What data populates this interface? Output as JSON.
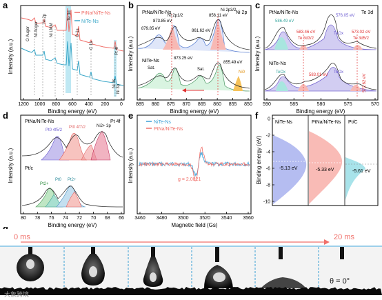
{
  "panels": {
    "a": {
      "letter": "a",
      "xlabel": "Binding energy (eV)",
      "ylabel": "Intensity (a.u.)",
      "xticks": [
        "1200",
        "1000",
        "800",
        "600",
        "400",
        "200",
        "0"
      ],
      "legend": [
        "Pt$_{Na}$/NiTe-Ns",
        "NiTe-Ns"
      ],
      "legend_text": [
        "PtNa/NiTe-Ns",
        "NiTe-Ns"
      ],
      "peaks": [
        "O Auger",
        "Ni Auger",
        "Ni 2p",
        "Ni LMM",
        "Te 3d",
        "O 1s",
        "C 1s",
        "Pt 4f",
        "Ni 3s",
        "Ni 3p"
      ]
    },
    "b": {
      "letter": "b",
      "xlabel": "Binding energy (eV)",
      "ylabel": "Intensity (a.u.)",
      "xticks": [
        "885",
        "880",
        "875",
        "870",
        "865",
        "860",
        "855",
        "850"
      ],
      "title": "Ni 2p",
      "sample_top": "PtNa/NiTe-Ns",
      "sample_bottom": "NiTe-Ns",
      "labels": [
        "879.85 eV",
        "873.85 eV",
        "Ni 2p1/2",
        "856.11 eV",
        "Ni 2p3/2",
        "861.62 eV",
        "873.25 eV",
        "855.49 eV",
        "Sat.",
        "Sat.",
        "Ni0"
      ]
    },
    "c": {
      "letter": "c",
      "xlabel": "Binding energy (eV)",
      "ylabel": "Intensity (a.u.)",
      "xticks": [
        "590",
        "585",
        "580",
        "575",
        "570"
      ],
      "title": "Te 3d",
      "sample_top": "PtNa/NiTe-Ns",
      "sample_bottom": "NiTe-Ns",
      "labels": [
        "586.49 eV",
        "576.05 eV",
        "583.46 eV",
        "Te 3d3/2",
        "573.02 eV",
        "Te 3d5/2",
        "TeOx",
        "TeOx",
        "583.01 eV",
        "572.62 eV"
      ]
    },
    "d": {
      "letter": "d",
      "xlabel": "Binding energy (eV)",
      "ylabel": "Intensity (a.u.)",
      "xticks": [
        "80",
        "78",
        "76",
        "74",
        "72",
        "70",
        "68",
        "66"
      ],
      "title": "Pt 4f",
      "sample_top": "PtNa/NiTe-Ns",
      "sample_bottom": "Pt/c",
      "labels": [
        "Pt0 4f5/2",
        "Pt0 4f7/2",
        "Ni2+ 3p",
        "Pt2+",
        "Pt2+",
        "Pt0"
      ]
    },
    "e": {
      "letter": "e",
      "xlabel": "Magnetic field (Gs)",
      "ylabel": "Intensity (a.u.)",
      "xticks": [
        "3460",
        "3480",
        "3500",
        "3520",
        "3540",
        "3560"
      ],
      "legend": [
        "NiTe-Ns",
        "PtNa/NiTe-Ns"
      ],
      "annotation": "g = 2.0021"
    },
    "f": {
      "letter": "f",
      "ylabel": "Binding energy (eV)",
      "yticks": [
        "0",
        "-2",
        "-4",
        "-6",
        "-8",
        "-10"
      ],
      "columns": [
        "NiTe-Ns",
        "PtNa/NiTe-Ns",
        "Pt/C"
      ],
      "centers": [
        "-5.13 eV",
        "-5.33 eV",
        "-5.61 eV"
      ]
    },
    "g": {
      "letter": "g",
      "time_start": "0 ms",
      "time_end": "20 ms",
      "angle": "θ = 0°",
      "watermark": "大象跨境"
    }
  },
  "colors": {
    "red": "#f0706a",
    "blue": "#3a9fd6",
    "purple": "#9a88d8",
    "teal": "#5ac8c0"
  }
}
